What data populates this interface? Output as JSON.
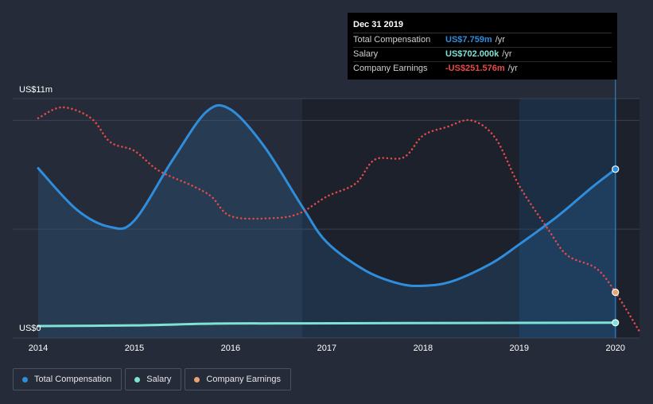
{
  "tooltip": {
    "date": "Dec 31 2019",
    "rows": [
      {
        "label": "Total Compensation",
        "value": "US$7.759m",
        "unit": "/yr",
        "color": "#2f8ddb"
      },
      {
        "label": "Salary",
        "value": "US$702.000k",
        "unit": "/yr",
        "color": "#7ee3d6"
      },
      {
        "label": "Company Earnings",
        "value": "-US$251.576m",
        "unit": "/yr",
        "color": "#e84a4a"
      }
    ]
  },
  "legend": [
    {
      "label": "Total Compensation",
      "color": "#2f8ddb"
    },
    {
      "label": "Salary",
      "color": "#7ee3d6"
    },
    {
      "label": "Company Earnings",
      "color": "#e8a46e"
    }
  ],
  "chart_data": {
    "type": "line",
    "y_top_label": "US$11m",
    "y_bottom_label": "US$0",
    "x_ticks": [
      "2014",
      "2015",
      "2016",
      "2017",
      "2018",
      "2019",
      "2020"
    ],
    "xlim": [
      2014.0,
      2020.25
    ],
    "ylim": [
      0,
      11
    ],
    "series": [
      {
        "name": "Total Compensation",
        "color": "#2f8ddb",
        "style": "solid",
        "area": true,
        "points": [
          [
            2014.0,
            7.8
          ],
          [
            2014.4,
            5.9
          ],
          [
            2014.75,
            5.1
          ],
          [
            2015.0,
            5.4
          ],
          [
            2015.4,
            8.2
          ],
          [
            2015.75,
            10.4
          ],
          [
            2016.0,
            10.5
          ],
          [
            2016.35,
            8.8
          ],
          [
            2016.75,
            6.0
          ],
          [
            2017.0,
            4.4
          ],
          [
            2017.4,
            3.1
          ],
          [
            2017.75,
            2.5
          ],
          [
            2018.0,
            2.4
          ],
          [
            2018.3,
            2.6
          ],
          [
            2018.7,
            3.4
          ],
          [
            2019.0,
            4.3
          ],
          [
            2019.4,
            5.6
          ],
          [
            2019.75,
            6.9
          ],
          [
            2020.0,
            7.759
          ]
        ]
      },
      {
        "name": "Salary",
        "color": "#7ee3d6",
        "style": "solid",
        "area": false,
        "points": [
          [
            2014.0,
            0.55
          ],
          [
            2015.0,
            0.58
          ],
          [
            2015.8,
            0.66
          ],
          [
            2016.5,
            0.67
          ],
          [
            2017.5,
            0.68
          ],
          [
            2018.5,
            0.69
          ],
          [
            2019.5,
            0.7
          ],
          [
            2020.0,
            0.702
          ]
        ]
      },
      {
        "name": "Company Earnings",
        "color": "#e84a4a",
        "style": "dotted",
        "area": false,
        "points": [
          [
            2014.0,
            10.1
          ],
          [
            2014.25,
            10.6
          ],
          [
            2014.55,
            10.1
          ],
          [
            2014.75,
            9.0
          ],
          [
            2015.0,
            8.6
          ],
          [
            2015.25,
            7.7
          ],
          [
            2015.6,
            7.0
          ],
          [
            2015.8,
            6.5
          ],
          [
            2016.0,
            5.6
          ],
          [
            2016.4,
            5.5
          ],
          [
            2016.7,
            5.7
          ],
          [
            2017.0,
            6.5
          ],
          [
            2017.3,
            7.1
          ],
          [
            2017.5,
            8.2
          ],
          [
            2017.8,
            8.3
          ],
          [
            2018.0,
            9.3
          ],
          [
            2018.25,
            9.7
          ],
          [
            2018.5,
            10.0
          ],
          [
            2018.75,
            9.2
          ],
          [
            2019.0,
            7.0
          ],
          [
            2019.3,
            5.0
          ],
          [
            2019.5,
            3.8
          ],
          [
            2019.8,
            3.2
          ],
          [
            2020.0,
            2.1
          ],
          [
            2020.25,
            0.3
          ]
        ]
      }
    ],
    "highlight_x": 2020.0,
    "highlight_band_from": 2019.0,
    "grid": true
  }
}
